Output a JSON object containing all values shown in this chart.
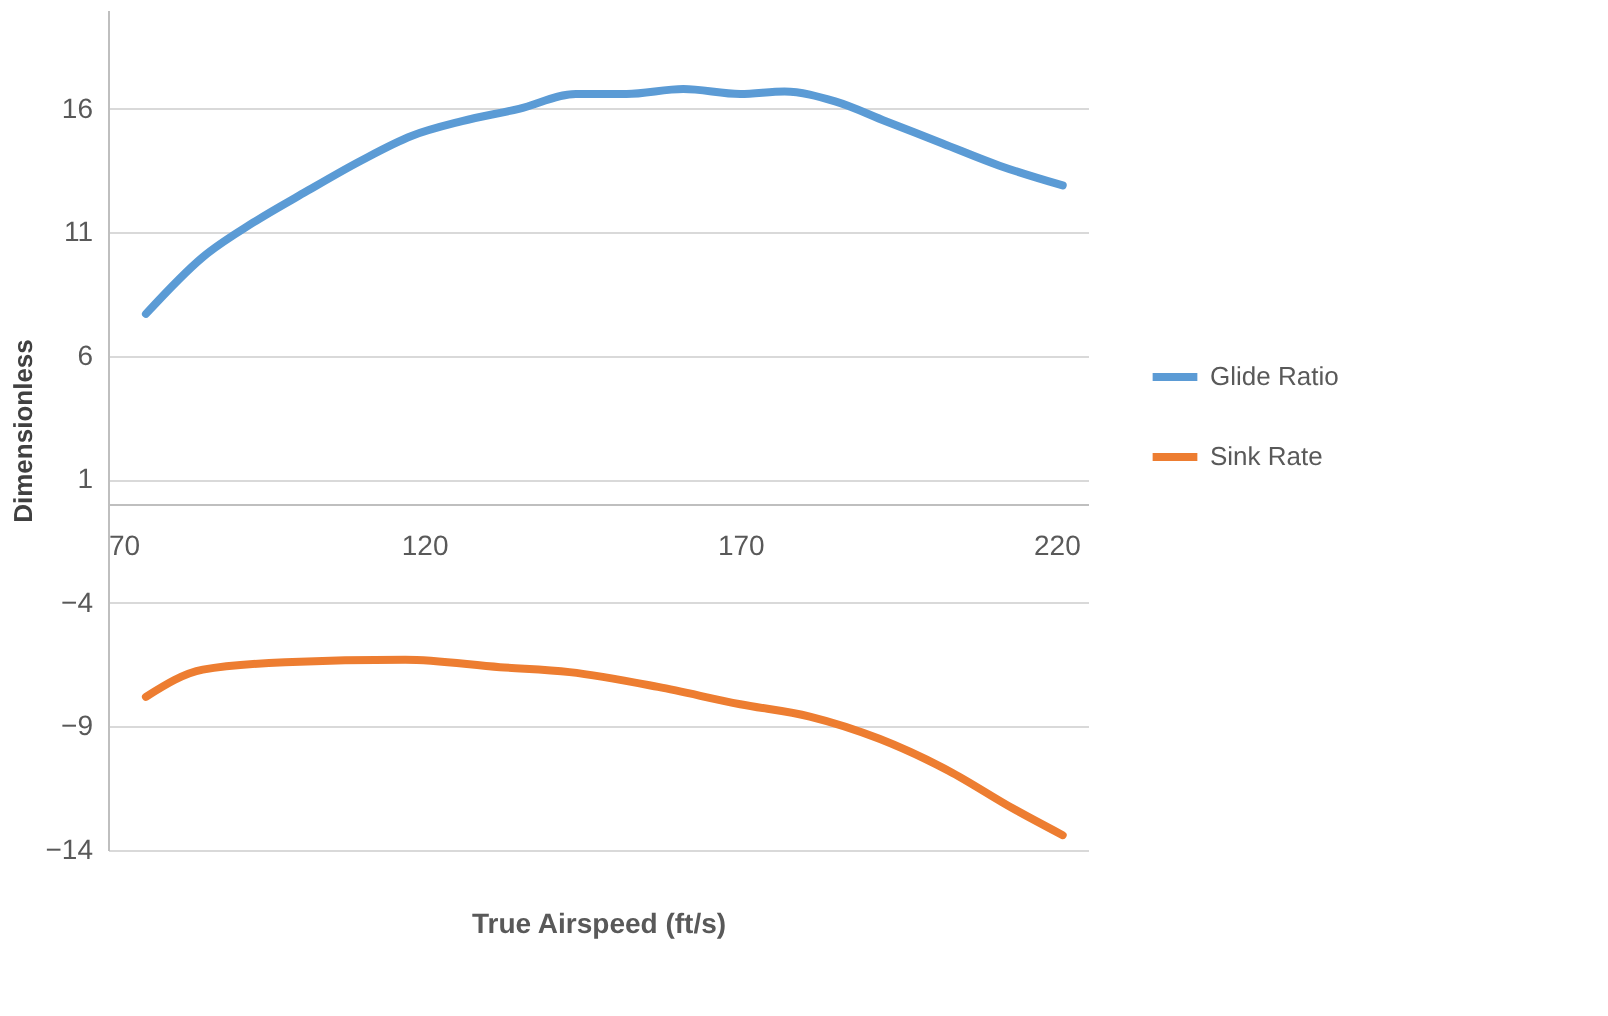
{
  "chart_data": {
    "type": "line",
    "xlabel": "True Airspeed (ft/s)",
    "ylabel": "Dimensionless",
    "xlim": [
      70,
      225
    ],
    "xticks": [
      70,
      120,
      170,
      220
    ],
    "ylim": [
      -14,
      20
    ],
    "yticks": [
      -14,
      -9,
      -4,
      1,
      6,
      11,
      16
    ],
    "grid": "y",
    "legend": "right",
    "line_style": "solid",
    "marker": "none",
    "series": [
      {
        "name": "Glide Ratio",
        "color": "#5b9bd5",
        "x": [
          76,
          85,
          93,
          101,
          110,
          118,
          126,
          135,
          144,
          152,
          161,
          170,
          177,
          185,
          193,
          202,
          211,
          221
        ],
        "values": [
          7.7,
          10,
          11.4,
          12.6,
          13.9,
          14.9,
          15.5,
          16,
          16.6,
          16.6,
          16.8,
          16.6,
          16.7,
          16.3,
          15.5,
          14.6,
          13.7,
          12.9
        ]
      },
      {
        "name": "Sink Rate",
        "color": "#ed7d31",
        "x": [
          76,
          85,
          98,
          117,
          132,
          143,
          157,
          170,
          181,
          192,
          203,
          213,
          221
        ],
        "values": [
          -7.8,
          -6.7,
          -6.4,
          -6.3,
          -6.6,
          -6.8,
          -7.4,
          -8.1,
          -8.6,
          -9.5,
          -10.8,
          -12.3,
          -13.4
        ]
      }
    ]
  }
}
